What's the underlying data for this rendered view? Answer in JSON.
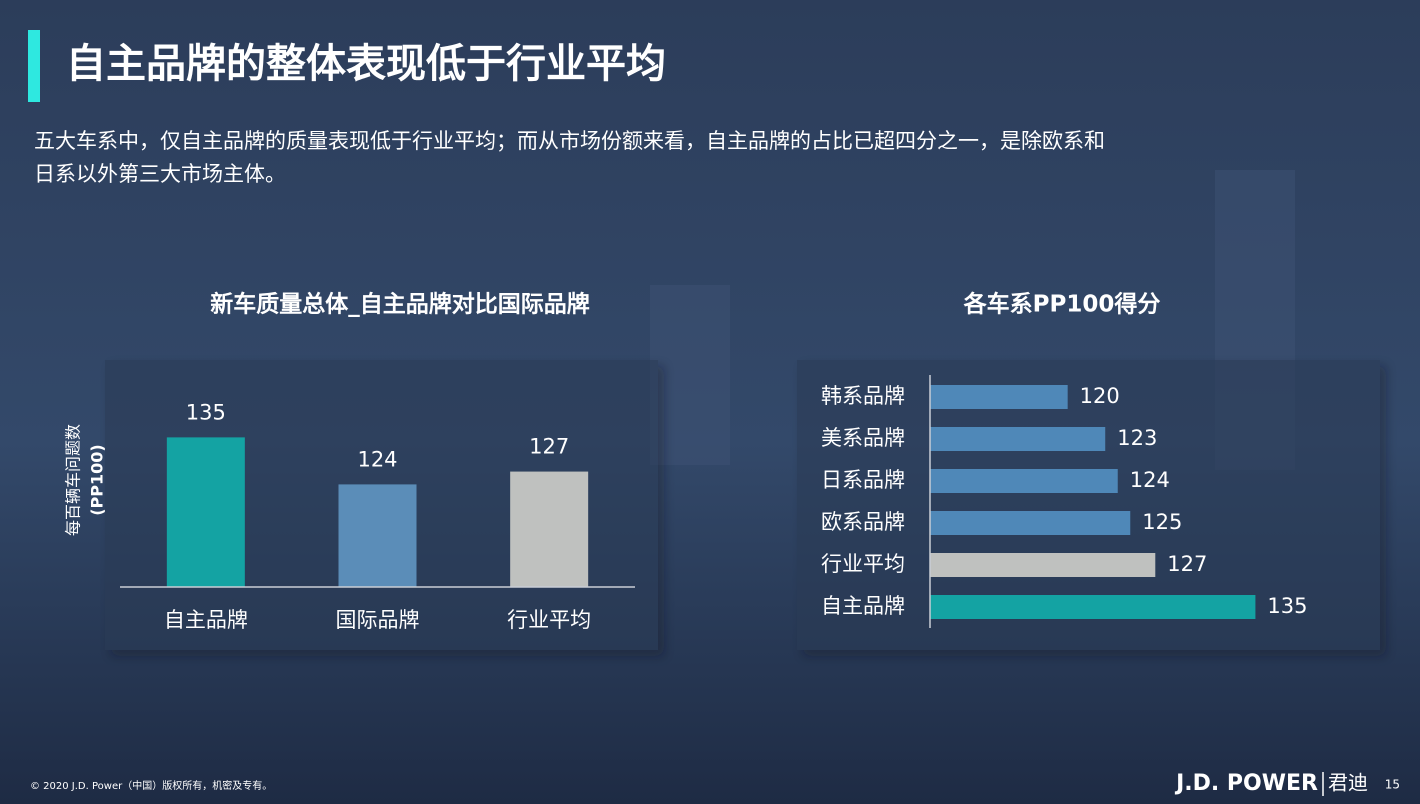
{
  "slide": {
    "title": "自主品牌的整体表现低于行业平均",
    "subtitle_lines": [
      "五大车系中，仅自主品牌的质量表现低于行业平均；而从市场份额来看，自主品牌的占比已超四分之一，是除欧系和",
      "日系以外第三大市场主体。"
    ],
    "footer": "© 2020 J.D. Power（中国）版权所有，机密及专有。",
    "logo": "J.D. POWER",
    "logo_cn": "君迪",
    "page": "15"
  },
  "chart_data": [
    {
      "type": "bar",
      "title": "新车质量总体_自主品牌对比国际品牌",
      "ylabel": [
        "每百辆车问题数",
        "(PP100)"
      ],
      "categories": [
        "自主品牌",
        "国际品牌",
        "行业平均"
      ],
      "values": [
        135,
        124,
        127
      ],
      "colors": [
        "#14a3a3",
        "#5b8db8",
        "#bfc1bf"
      ],
      "ylim": [
        100,
        140
      ]
    },
    {
      "type": "barh",
      "title": "各车系PP100得分",
      "categories": [
        "韩系品牌",
        "美系品牌",
        "日系品牌",
        "欧系品牌",
        "行业平均",
        "自主品牌"
      ],
      "values": [
        120,
        123,
        124,
        125,
        127,
        135
      ],
      "colors": [
        "#4f88b8",
        "#4f88b8",
        "#4f88b8",
        "#4f88b8",
        "#bfc1bf",
        "#14a3a3"
      ],
      "xlim": [
        109,
        140
      ]
    }
  ]
}
